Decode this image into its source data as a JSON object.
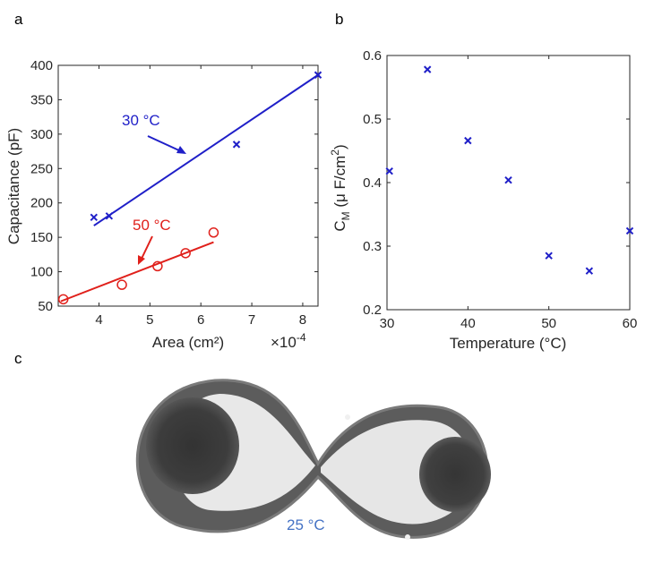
{
  "panels": {
    "a": "a",
    "b": "b",
    "c": "c"
  },
  "chart_data": [
    {
      "type": "scatter",
      "panel": "a",
      "xlabel": "Area (cm²)",
      "x_exponent_label": "×10",
      "x_exponent_power": "-4",
      "ylabel": "Capacitance (pF)",
      "xlim": [
        3.2,
        8.3
      ],
      "ylim": [
        50,
        400
      ],
      "xticks": [
        4,
        5,
        6,
        7,
        8
      ],
      "yticks": [
        50,
        100,
        150,
        200,
        250,
        300,
        350,
        400
      ],
      "series": [
        {
          "name": "30 °C",
          "color": "#1f1fc8",
          "marker": "x",
          "x": [
            3.9,
            4.2,
            6.7,
            8.3
          ],
          "y": [
            179,
            181,
            285,
            386
          ],
          "fit": {
            "x": [
              3.9,
              8.3
            ],
            "y": [
              167,
              386
            ]
          }
        },
        {
          "name": "50 °C",
          "color": "#e0201b",
          "marker": "o",
          "x": [
            3.3,
            4.45,
            5.15,
            5.7,
            6.25
          ],
          "y": [
            60,
            81,
            108,
            127,
            157
          ],
          "fit": {
            "x": [
              3.25,
              6.25
            ],
            "y": [
              57,
              143
            ]
          }
        }
      ],
      "annotations": [
        {
          "text": "30 °C",
          "color": "#1f1fc8"
        },
        {
          "text": "50 °C",
          "color": "#e0201b"
        }
      ]
    },
    {
      "type": "scatter",
      "panel": "b",
      "xlabel": "Temperature (°C)",
      "ylabel_main": "C",
      "ylabel_sub": "M",
      "ylabel_rest": " (μ F/cm",
      "ylabel_sup": "2",
      "ylabel_close": ")",
      "xlim": [
        30,
        60
      ],
      "ylim": [
        0.2,
        0.6
      ],
      "xticks": [
        30,
        40,
        50,
        60
      ],
      "yticks": [
        0.2,
        0.3,
        0.4,
        0.5,
        0.6
      ],
      "series": [
        {
          "color": "#1f1fc8",
          "marker": "x",
          "x": [
            30.3,
            35,
            40,
            45,
            50,
            55,
            60
          ],
          "y": [
            0.418,
            0.578,
            0.466,
            0.404,
            0.285,
            0.261,
            0.324
          ]
        }
      ]
    }
  ],
  "photo": {
    "label": "25 °C"
  }
}
